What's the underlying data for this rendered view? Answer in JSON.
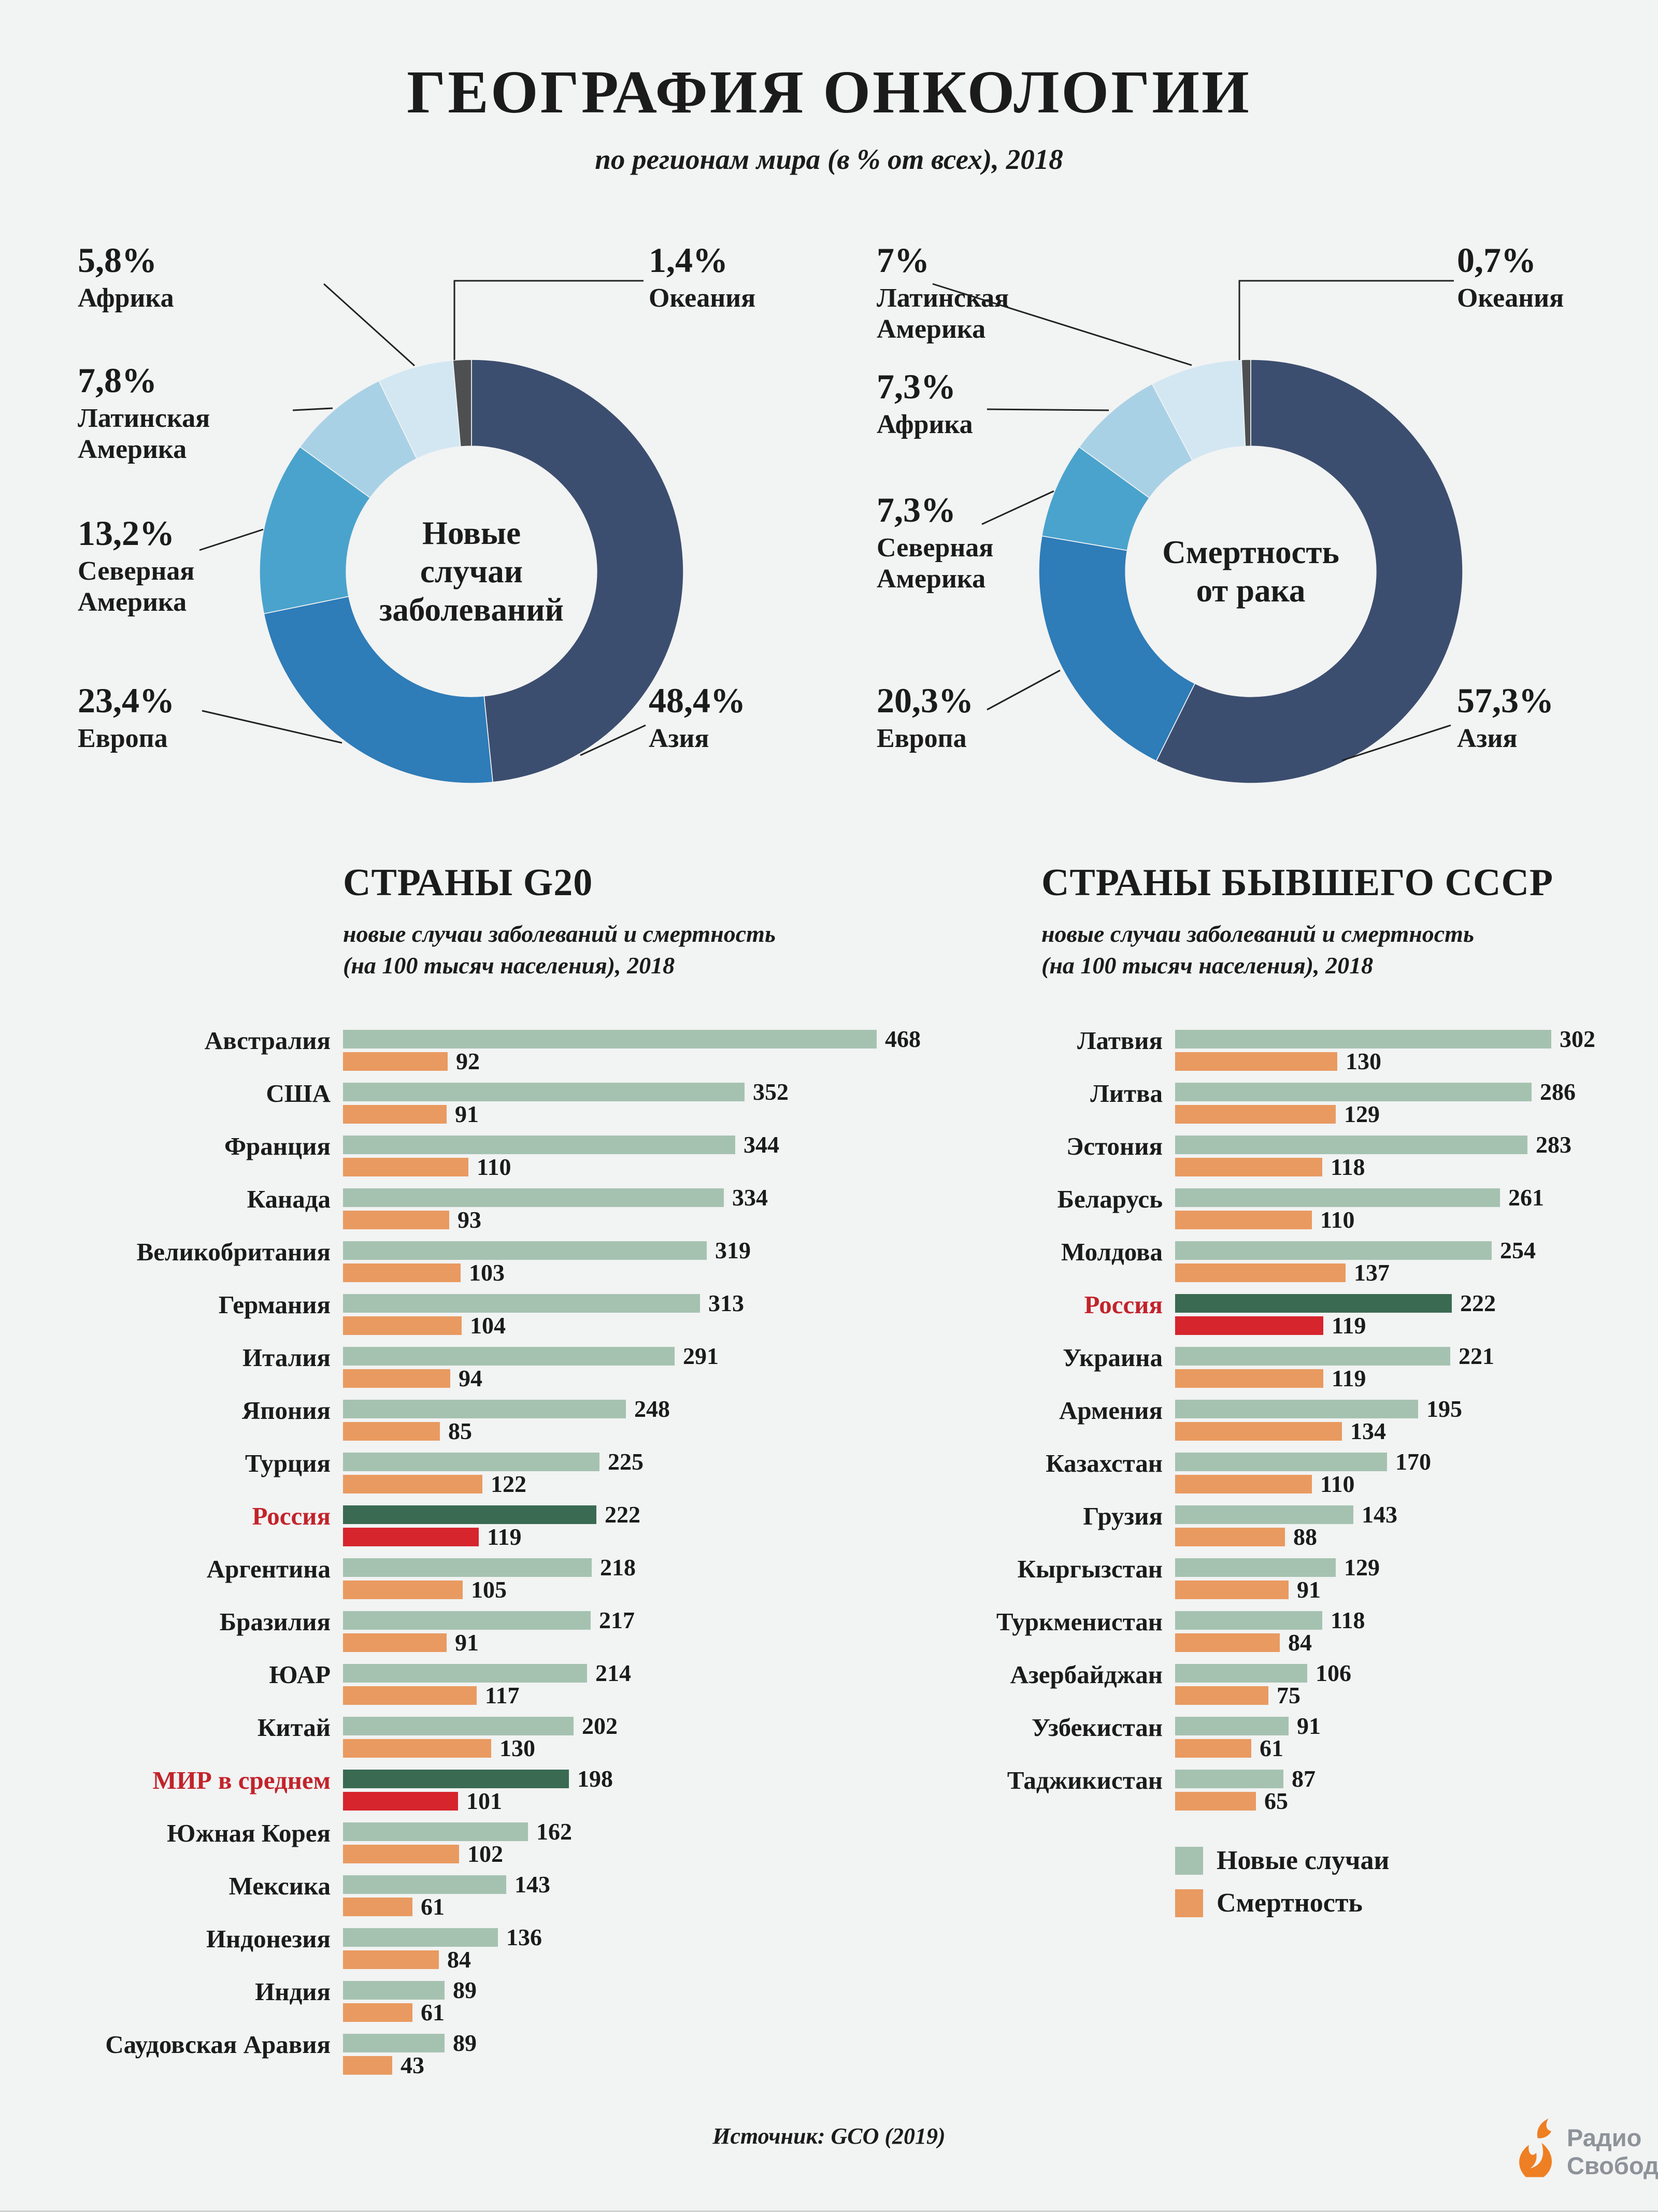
{
  "page": {
    "title": "ГЕОГРАФИЯ ОНКОЛОГИИ",
    "subtitle": "по регионам мира (в % от всех), 2018",
    "source": "Источник: GCO (2019)",
    "logo": {
      "line1": "Радио",
      "line2": "Свобода"
    }
  },
  "legend": {
    "new_label": "Новые случаи",
    "death_label": "Смертность"
  },
  "colors": {
    "bar_new": "#a5c2b1",
    "bar_new_hl": "#3a6a52",
    "bar_death": "#e99a60",
    "bar_death_hl": "#d6252c",
    "hl_text": "#c2232b"
  },
  "chart_data": [
    {
      "id": "donut-new-cases",
      "type": "pie",
      "title": "Новые случаи заболеваний",
      "center_label_lines": [
        "Новые",
        "случаи",
        "заболеваний"
      ],
      "slices": [
        {
          "label": "Азия",
          "value": 48.4,
          "display": "48,4%",
          "color": "#3c4e6f"
        },
        {
          "label": "Европа",
          "value": 23.4,
          "display": "23,4%",
          "color": "#2e7cb8"
        },
        {
          "label": "Северная Америка",
          "value": 13.2,
          "display": "13,2%",
          "color": "#4aa3cd"
        },
        {
          "label": "Латинская Америка",
          "value": 7.8,
          "display": "7,8%",
          "color": "#a9d1e6"
        },
        {
          "label": "Африка",
          "value": 5.8,
          "display": "5,8%",
          "color": "#d3e7f2"
        },
        {
          "label": "Океания",
          "value": 1.4,
          "display": "1,4%",
          "color": "#4d4f50"
        }
      ]
    },
    {
      "id": "donut-mortality",
      "type": "pie",
      "title": "Смертность от рака",
      "center_label_lines": [
        "Смертность",
        "от рака"
      ],
      "slices": [
        {
          "label": "Азия",
          "value": 57.3,
          "display": "57,3%",
          "color": "#3c4e6f"
        },
        {
          "label": "Европа",
          "value": 20.3,
          "display": "20,3%",
          "color": "#2e7cb8"
        },
        {
          "label": "Северная Америка",
          "value": 7.3,
          "display": "7,3%",
          "color": "#4aa3cd"
        },
        {
          "label": "Африка",
          "value": 7.3,
          "display": "7,3%",
          "color": "#a9d1e6"
        },
        {
          "label": "Латинская Америка",
          "value": 7.0,
          "display": "7%",
          "color": "#d3e7f2"
        },
        {
          "label": "Океания",
          "value": 0.7,
          "display": "0,7%",
          "color": "#4d4f50"
        }
      ]
    },
    {
      "id": "bars-g20",
      "type": "bar",
      "orientation": "horizontal",
      "title": "СТРАНЫ G20",
      "subtitle_lines": [
        "новые случаи заболеваний и смертность",
        "(на 100 тысяч населения), 2018"
      ],
      "series_names": [
        "Новые случаи",
        "Смертность"
      ],
      "max_value": 468,
      "rows": [
        {
          "name": "Австралия",
          "new": 468,
          "death": 92
        },
        {
          "name": "США",
          "new": 352,
          "death": 91
        },
        {
          "name": "Франция",
          "new": 344,
          "death": 110
        },
        {
          "name": "Канада",
          "new": 334,
          "death": 93
        },
        {
          "name": "Великобритания",
          "new": 319,
          "death": 103
        },
        {
          "name": "Германия",
          "new": 313,
          "death": 104
        },
        {
          "name": "Италия",
          "new": 291,
          "death": 94
        },
        {
          "name": "Япония",
          "new": 248,
          "death": 85
        },
        {
          "name": "Турция",
          "new": 225,
          "death": 122
        },
        {
          "name": "Россия",
          "new": 222,
          "death": 119,
          "highlight": true
        },
        {
          "name": "Аргентина",
          "new": 218,
          "death": 105
        },
        {
          "name": "Бразилия",
          "new": 217,
          "death": 91
        },
        {
          "name": "ЮАР",
          "new": 214,
          "death": 117
        },
        {
          "name": "Китай",
          "new": 202,
          "death": 130
        },
        {
          "name": "МИР в среднем",
          "new": 198,
          "death": 101,
          "highlight": true
        },
        {
          "name": "Южная Корея",
          "new": 162,
          "death": 102
        },
        {
          "name": "Мексика",
          "new": 143,
          "death": 61
        },
        {
          "name": "Индонезия",
          "new": 136,
          "death": 84
        },
        {
          "name": "Индия",
          "new": 89,
          "death": 61
        },
        {
          "name": "Саудовская Аравия",
          "new": 89,
          "death": 43
        }
      ]
    },
    {
      "id": "bars-ussr",
      "type": "bar",
      "orientation": "horizontal",
      "title": "СТРАНЫ БЫВШЕГО СССР",
      "subtitle_lines": [
        "новые случаи заболеваний и смертность",
        "(на 100 тысяч населения), 2018"
      ],
      "series_names": [
        "Новые случаи",
        "Смертность"
      ],
      "max_value": 302,
      "rows": [
        {
          "name": "Латвия",
          "new": 302,
          "death": 130
        },
        {
          "name": "Литва",
          "new": 286,
          "death": 129
        },
        {
          "name": "Эстония",
          "new": 283,
          "death": 118
        },
        {
          "name": "Беларусь",
          "new": 261,
          "death": 110
        },
        {
          "name": "Молдова",
          "new": 254,
          "death": 137
        },
        {
          "name": "Россия",
          "new": 222,
          "death": 119,
          "highlight": true
        },
        {
          "name": "Украина",
          "new": 221,
          "death": 119
        },
        {
          "name": "Армения",
          "new": 195,
          "death": 134
        },
        {
          "name": "Казахстан",
          "new": 170,
          "death": 110
        },
        {
          "name": "Грузия",
          "new": 143,
          "death": 88
        },
        {
          "name": "Кыргызстан",
          "new": 129,
          "death": 91
        },
        {
          "name": "Туркменистан",
          "new": 118,
          "death": 84
        },
        {
          "name": "Азербайджан",
          "new": 106,
          "death": 75
        },
        {
          "name": "Узбекистан",
          "new": 91,
          "death": 61
        },
        {
          "name": "Таджикистан",
          "new": 87,
          "death": 65
        }
      ]
    }
  ]
}
